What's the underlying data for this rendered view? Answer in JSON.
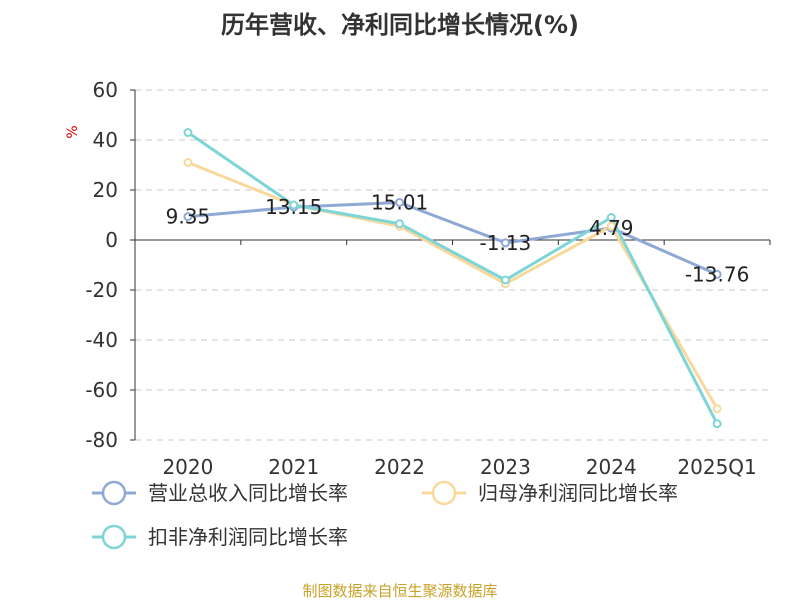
{
  "chart_data": {
    "type": "line",
    "title": "历年营收、净利同比增长情况(%)",
    "ylabel": "%",
    "xlabel": "",
    "categories": [
      "2020",
      "2021",
      "2022",
      "2023",
      "2024",
      "2025Q1"
    ],
    "ylim": [
      -80,
      60
    ],
    "yticks": [
      "60",
      "40",
      "20",
      "0",
      "-20",
      "-40",
      "-60",
      "-80"
    ],
    "grid": true,
    "legend_position": "bottom",
    "series": [
      {
        "name": "营业总收入同比增长率",
        "color": "#8fa9d6",
        "values": [
          9.35,
          13.15,
          15.01,
          -1.13,
          4.79,
          -13.76
        ],
        "labels": [
          "9.35",
          "13.15",
          "15.01",
          "-1.13",
          "4.79",
          "-13.76"
        ]
      },
      {
        "name": "归母净利润同比增长率",
        "color": "#f9d99b",
        "values": [
          31,
          14,
          5.5,
          -17.5,
          5.5,
          -67.5
        ]
      },
      {
        "name": "扣非净利润同比增长率",
        "color": "#7dd5d7",
        "values": [
          43,
          14,
          6.5,
          -16,
          9,
          -73.5
        ]
      }
    ]
  },
  "source": "制图数据来自恒生聚源数据库"
}
